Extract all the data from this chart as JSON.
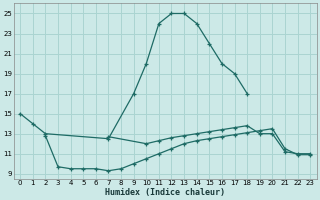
{
  "xlabel": "Humidex (Indice chaleur)",
  "bg_color": "#cce9e7",
  "grid_color": "#aad4d1",
  "line_color": "#1e6b65",
  "xlim": [
    -0.5,
    23.5
  ],
  "ylim": [
    8.5,
    26
  ],
  "xticks": [
    0,
    1,
    2,
    3,
    4,
    5,
    6,
    7,
    8,
    9,
    10,
    11,
    12,
    13,
    14,
    15,
    16,
    17,
    18,
    19,
    20,
    21,
    22,
    23
  ],
  "yticks": [
    9,
    11,
    13,
    15,
    17,
    19,
    21,
    23,
    25
  ],
  "series1_x": [
    0,
    1,
    2,
    7,
    9,
    10,
    11,
    12,
    13,
    14,
    15,
    16,
    17,
    18
  ],
  "series1_y": [
    15,
    14,
    13,
    12.5,
    17,
    20,
    24,
    25,
    25,
    24,
    22,
    20,
    19,
    17
  ],
  "series2_x": [
    2,
    3,
    4,
    5,
    6,
    7,
    8,
    9,
    10,
    11,
    12,
    13,
    14,
    15,
    16,
    17,
    18,
    19,
    20,
    21,
    22,
    23
  ],
  "series2_y": [
    12.8,
    9.7,
    9.5,
    9.5,
    9.5,
    9.3,
    9.5,
    10,
    10.5,
    11,
    11.5,
    12,
    12.3,
    12.5,
    12.7,
    12.9,
    13.1,
    13.3,
    13.5,
    11.5,
    10.9,
    10.9
  ],
  "series3_x": [
    7,
    10,
    11,
    12,
    13,
    14,
    15,
    16,
    17,
    18,
    19,
    20,
    21,
    22,
    23
  ],
  "series3_y": [
    12.7,
    12,
    12.3,
    12.6,
    12.8,
    13.0,
    13.2,
    13.4,
    13.6,
    13.8,
    13.0,
    13.0,
    11.2,
    11.0,
    11.0
  ]
}
